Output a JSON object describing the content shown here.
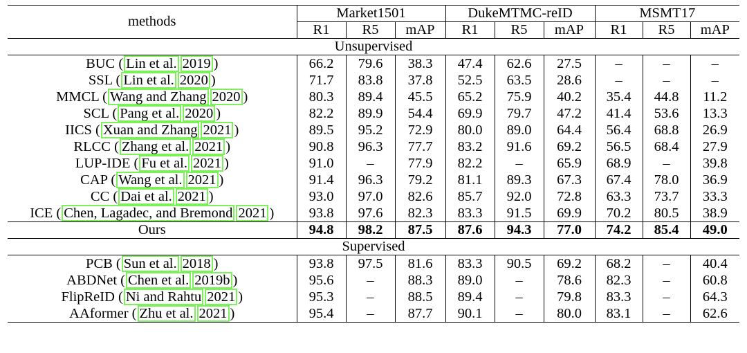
{
  "header": {
    "methods": "methods",
    "datasets": [
      "Market1501",
      "DukeMTMC-reID",
      "MSMT17"
    ],
    "metrics": [
      "R1",
      "R5",
      "mAP",
      "R1",
      "R5",
      "mAP",
      "R1",
      "R5",
      "mAP"
    ]
  },
  "sections": [
    {
      "title": "Unsupervised",
      "rows": [
        {
          "name": "BUC",
          "cite_a": "Lin et al.",
          "cite_b": "2019",
          "values": [
            "66.2",
            "79.6",
            "38.3",
            "47.4",
            "62.6",
            "27.5",
            "–",
            "–",
            "–"
          ]
        },
        {
          "name": "SSL",
          "cite_a": "Lin et al.",
          "cite_b": "2020",
          "values": [
            "71.7",
            "83.8",
            "37.8",
            "52.5",
            "63.5",
            "28.6",
            "–",
            "–",
            "–"
          ]
        },
        {
          "name": "MMCL",
          "cite_a": "Wang and Zhang",
          "cite_b": "2020",
          "values": [
            "80.3",
            "89.4",
            "45.5",
            "65.2",
            "75.9",
            "40.2",
            "35.4",
            "44.8",
            "11.2"
          ]
        },
        {
          "name": "SCL",
          "cite_a": "Pang et al.",
          "cite_b": "2020",
          "values": [
            "82.2",
            "89.9",
            "54.4",
            "69.9",
            "79.7",
            "47.2",
            "41.4",
            "53.6",
            "13.3"
          ]
        },
        {
          "name": "IICS",
          "cite_a": "Xuan and Zhang",
          "cite_b": "2021",
          "values": [
            "89.5",
            "95.2",
            "72.9",
            "80.0",
            "89.0",
            "64.4",
            "56.4",
            "68.8",
            "26.9"
          ]
        },
        {
          "name": "RLCC",
          "cite_a": "Zhang et al.",
          "cite_b": "2021",
          "values": [
            "90.8",
            "96.3",
            "77.7",
            "83.2",
            "91.6",
            "69.2",
            "56.5",
            "68.4",
            "27.9"
          ]
        },
        {
          "name": "LUP-IDE",
          "cite_a": "Fu et al.",
          "cite_b": "2021",
          "values": [
            "91.0",
            "–",
            "77.9",
            "82.2",
            "–",
            "65.9",
            "68.9",
            "–",
            "39.8"
          ]
        },
        {
          "name": "CAP",
          "cite_a": "Wang et al.",
          "cite_b": "2021",
          "values": [
            "91.4",
            "96.3",
            "79.2",
            "81.1",
            "89.3",
            "67.3",
            "67.4",
            "78.0",
            "36.9"
          ]
        },
        {
          "name": "CC",
          "cite_a": "Dai et al.",
          "cite_b": "2021",
          "values": [
            "93.0",
            "97.0",
            "82.6",
            "85.7",
            "92.0",
            "72.8",
            "63.3",
            "73.7",
            "33.3"
          ]
        },
        {
          "name": "ICE",
          "cite_a": "Chen, Lagadec, and Bremond",
          "cite_b": "2021",
          "values": [
            "93.8",
            "97.6",
            "82.3",
            "83.3",
            "91.5",
            "69.9",
            "70.2",
            "80.5",
            "38.9"
          ]
        }
      ]
    },
    {
      "title": "Supervised",
      "rows": [
        {
          "name": "PCB",
          "cite_a": "Sun et al.",
          "cite_b": "2018",
          "values": [
            "93.8",
            "97.5",
            "81.6",
            "83.3",
            "90.5",
            "69.2",
            "68.2",
            "–",
            "40.4"
          ]
        },
        {
          "name": "ABDNet",
          "cite_a": "Chen et al.",
          "cite_b": "2019b",
          "values": [
            "95.6",
            "–",
            "88.3",
            "89.0",
            "–",
            "78.6",
            "82.3",
            "–",
            "60.8"
          ]
        },
        {
          "name": "FlipReID",
          "cite_a": "Ni and Rahtu",
          "cite_b": "2021",
          "values": [
            "95.3",
            "–",
            "88.5",
            "89.4",
            "–",
            "79.8",
            "83.3",
            "–",
            "64.3"
          ]
        },
        {
          "name": "AAformer",
          "cite_a": "Zhu et al.",
          "cite_b": "2021",
          "values": [
            "95.4",
            "–",
            "87.7",
            "90.1",
            "–",
            "80.0",
            "83.1",
            "–",
            "62.6"
          ]
        }
      ]
    }
  ],
  "ours": {
    "name": "Ours",
    "values": [
      "94.8",
      "98.2",
      "87.5",
      "87.6",
      "94.3",
      "77.0",
      "74.2",
      "85.4",
      "49.0"
    ]
  }
}
